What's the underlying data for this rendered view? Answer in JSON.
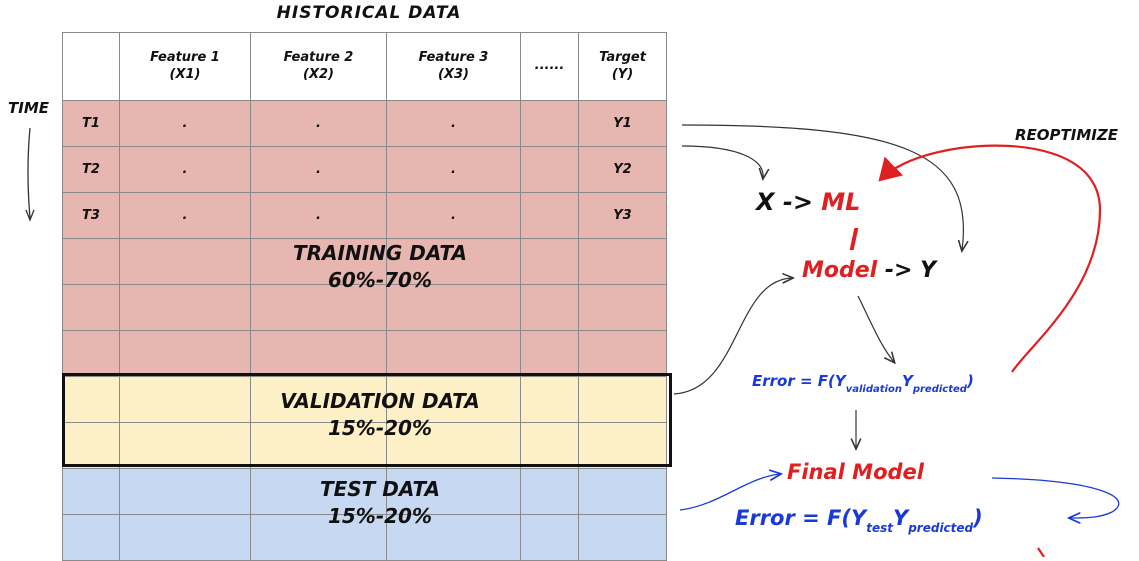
{
  "title": "HISTORICAL DATA",
  "time_label": "TIME",
  "table": {
    "headers": [
      "",
      "Feature 1\n(X1)",
      "Feature 2\n(X2)",
      "Feature 3\n(X3)",
      "......",
      "Target\n(Y)"
    ],
    "rows": [
      {
        "band": "train",
        "cells": [
          "T1",
          ".",
          ".",
          ".",
          "",
          "Y1"
        ]
      },
      {
        "band": "train",
        "cells": [
          "T2",
          ".",
          ".",
          ".",
          "",
          "Y2"
        ]
      },
      {
        "band": "train",
        "cells": [
          "T3",
          ".",
          ".",
          ".",
          "",
          "Y3"
        ]
      },
      {
        "band": "train",
        "cells": [
          "",
          "",
          "",
          "",
          "",
          ""
        ]
      },
      {
        "band": "train",
        "cells": [
          "",
          "",
          "",
          "",
          "",
          ""
        ]
      },
      {
        "band": "train",
        "cells": [
          "",
          "",
          "",
          "",
          "",
          ""
        ]
      },
      {
        "band": "valid",
        "cells": [
          "",
          "",
          "",
          "",
          "",
          ""
        ]
      },
      {
        "band": "valid",
        "cells": [
          "",
          "",
          "",
          "",
          "",
          ""
        ]
      },
      {
        "band": "test",
        "cells": [
          "",
          "",
          "",
          "",
          "",
          ""
        ]
      },
      {
        "band": "test",
        "cells": [
          "",
          "",
          "",
          "",
          "",
          ""
        ]
      }
    ]
  },
  "bands": {
    "training": {
      "name": "TRAINING DATA",
      "pct": "60%-70%"
    },
    "validation": {
      "name": "VALIDATION DATA",
      "pct": "15%-20%"
    },
    "test": {
      "name": "TEST DATA",
      "pct": "15%-20%"
    }
  },
  "flow": {
    "x_part": "X ->",
    "ml": "ML",
    "model": "Model",
    "to_y": "-> Y",
    "reoptimize": "REOPTIMIZE",
    "error_val": {
      "prefix": "Error = F(Y",
      "sub1": "validation",
      "mid": "Y",
      "sub2": "predicted",
      "suffix": ")"
    },
    "final_model": "Final Model",
    "error_test": {
      "prefix": "Error = F(Y",
      "sub1": "test",
      "mid": "Y",
      "sub2": "predicted",
      "suffix": ")"
    }
  },
  "colors": {
    "training": "#e8b6b0",
    "validation": "#fdf0c7",
    "test": "#c6d8f2",
    "red": "#e02020",
    "blue": "#1a3ad8"
  }
}
